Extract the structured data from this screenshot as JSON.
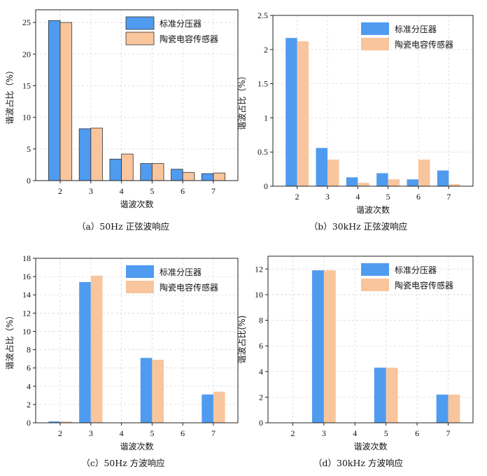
{
  "colors": {
    "series1": "#4f9bf0",
    "series2": "#f9c59c",
    "grid": "#d9d9d9"
  },
  "chart_data": [
    {
      "type": "bar",
      "caption": "（a）50Hz 正弦波响应",
      "xlabel": "谐波次数",
      "ylabel": "谐波占比（%）",
      "categories": [
        "2",
        "3",
        "4",
        "5",
        "6",
        "7"
      ],
      "ylim": [
        0,
        27
      ],
      "yticks": [
        0,
        5,
        10,
        15,
        20,
        25
      ],
      "ytick_labels": [
        "0",
        "5",
        "10",
        "15",
        "20",
        "25"
      ],
      "bar_outline": true,
      "legend_position": "top-right",
      "series": [
        {
          "name": "标准分压器",
          "values": [
            25.3,
            8.2,
            3.4,
            2.7,
            1.8,
            1.1
          ]
        },
        {
          "name": "陶瓷电容传感器",
          "values": [
            25.0,
            8.3,
            4.2,
            2.7,
            1.3,
            1.2
          ]
        }
      ]
    },
    {
      "type": "bar",
      "caption": "（b）30kHz 正弦波响应",
      "xlabel": "谐波次数",
      "ylabel": "谐波占比（%）",
      "categories": [
        "2",
        "3",
        "4",
        "5",
        "6",
        "7"
      ],
      "ylim": [
        0,
        2.5
      ],
      "yticks": [
        0,
        0.5,
        1,
        1.5,
        2,
        2.5
      ],
      "ytick_labels": [
        "0",
        "0.5",
        "1",
        "1.5",
        "2",
        "2.5"
      ],
      "bar_outline": false,
      "legend_position": "top-right",
      "series": [
        {
          "name": "标准分压器",
          "values": [
            2.17,
            0.56,
            0.13,
            0.19,
            0.1,
            0.23
          ]
        },
        {
          "name": "陶瓷电容传感器",
          "values": [
            2.12,
            0.39,
            0.05,
            0.1,
            0.39,
            0.03
          ]
        }
      ]
    },
    {
      "type": "bar",
      "caption": "（c）50Hz 方波响应",
      "xlabel": "谐波次数",
      "ylabel": "谐波占比（%）",
      "categories": [
        "2",
        "3",
        "4",
        "5",
        "6",
        "7"
      ],
      "ylim": [
        0,
        18
      ],
      "yticks": [
        0,
        2,
        4,
        6,
        8,
        10,
        12,
        14,
        16,
        18
      ],
      "ytick_labels": [
        "0",
        "2",
        "4",
        "6",
        "8",
        "10",
        "12",
        "14",
        "16",
        "18"
      ],
      "bar_outline": false,
      "legend_position": "top-right",
      "series": [
        {
          "name": "标准分压器",
          "values": [
            0.15,
            15.4,
            0,
            7.1,
            0,
            3.1
          ]
        },
        {
          "name": "陶瓷电容传感器",
          "values": [
            0.15,
            16.1,
            0,
            6.9,
            0,
            3.4
          ]
        }
      ]
    },
    {
      "type": "bar",
      "caption": "（d）30kHz 方波响应",
      "xlabel": "谐波次数",
      "ylabel": "谐波占比(%)",
      "categories": [
        "2",
        "3",
        "4",
        "5",
        "6",
        "7"
      ],
      "ylim": [
        0,
        13
      ],
      "yticks": [
        0,
        2,
        4,
        6,
        8,
        10,
        12
      ],
      "ytick_labels": [
        "0",
        "2",
        "4",
        "6",
        "8",
        "10",
        "12"
      ],
      "bar_outline": false,
      "legend_position": "top-right",
      "series": [
        {
          "name": "标准分压器",
          "values": [
            0,
            11.9,
            0,
            4.3,
            0,
            2.2
          ]
        },
        {
          "name": "陶瓷电容传感器",
          "values": [
            0,
            11.9,
            0,
            4.3,
            0,
            2.2
          ]
        }
      ]
    }
  ]
}
